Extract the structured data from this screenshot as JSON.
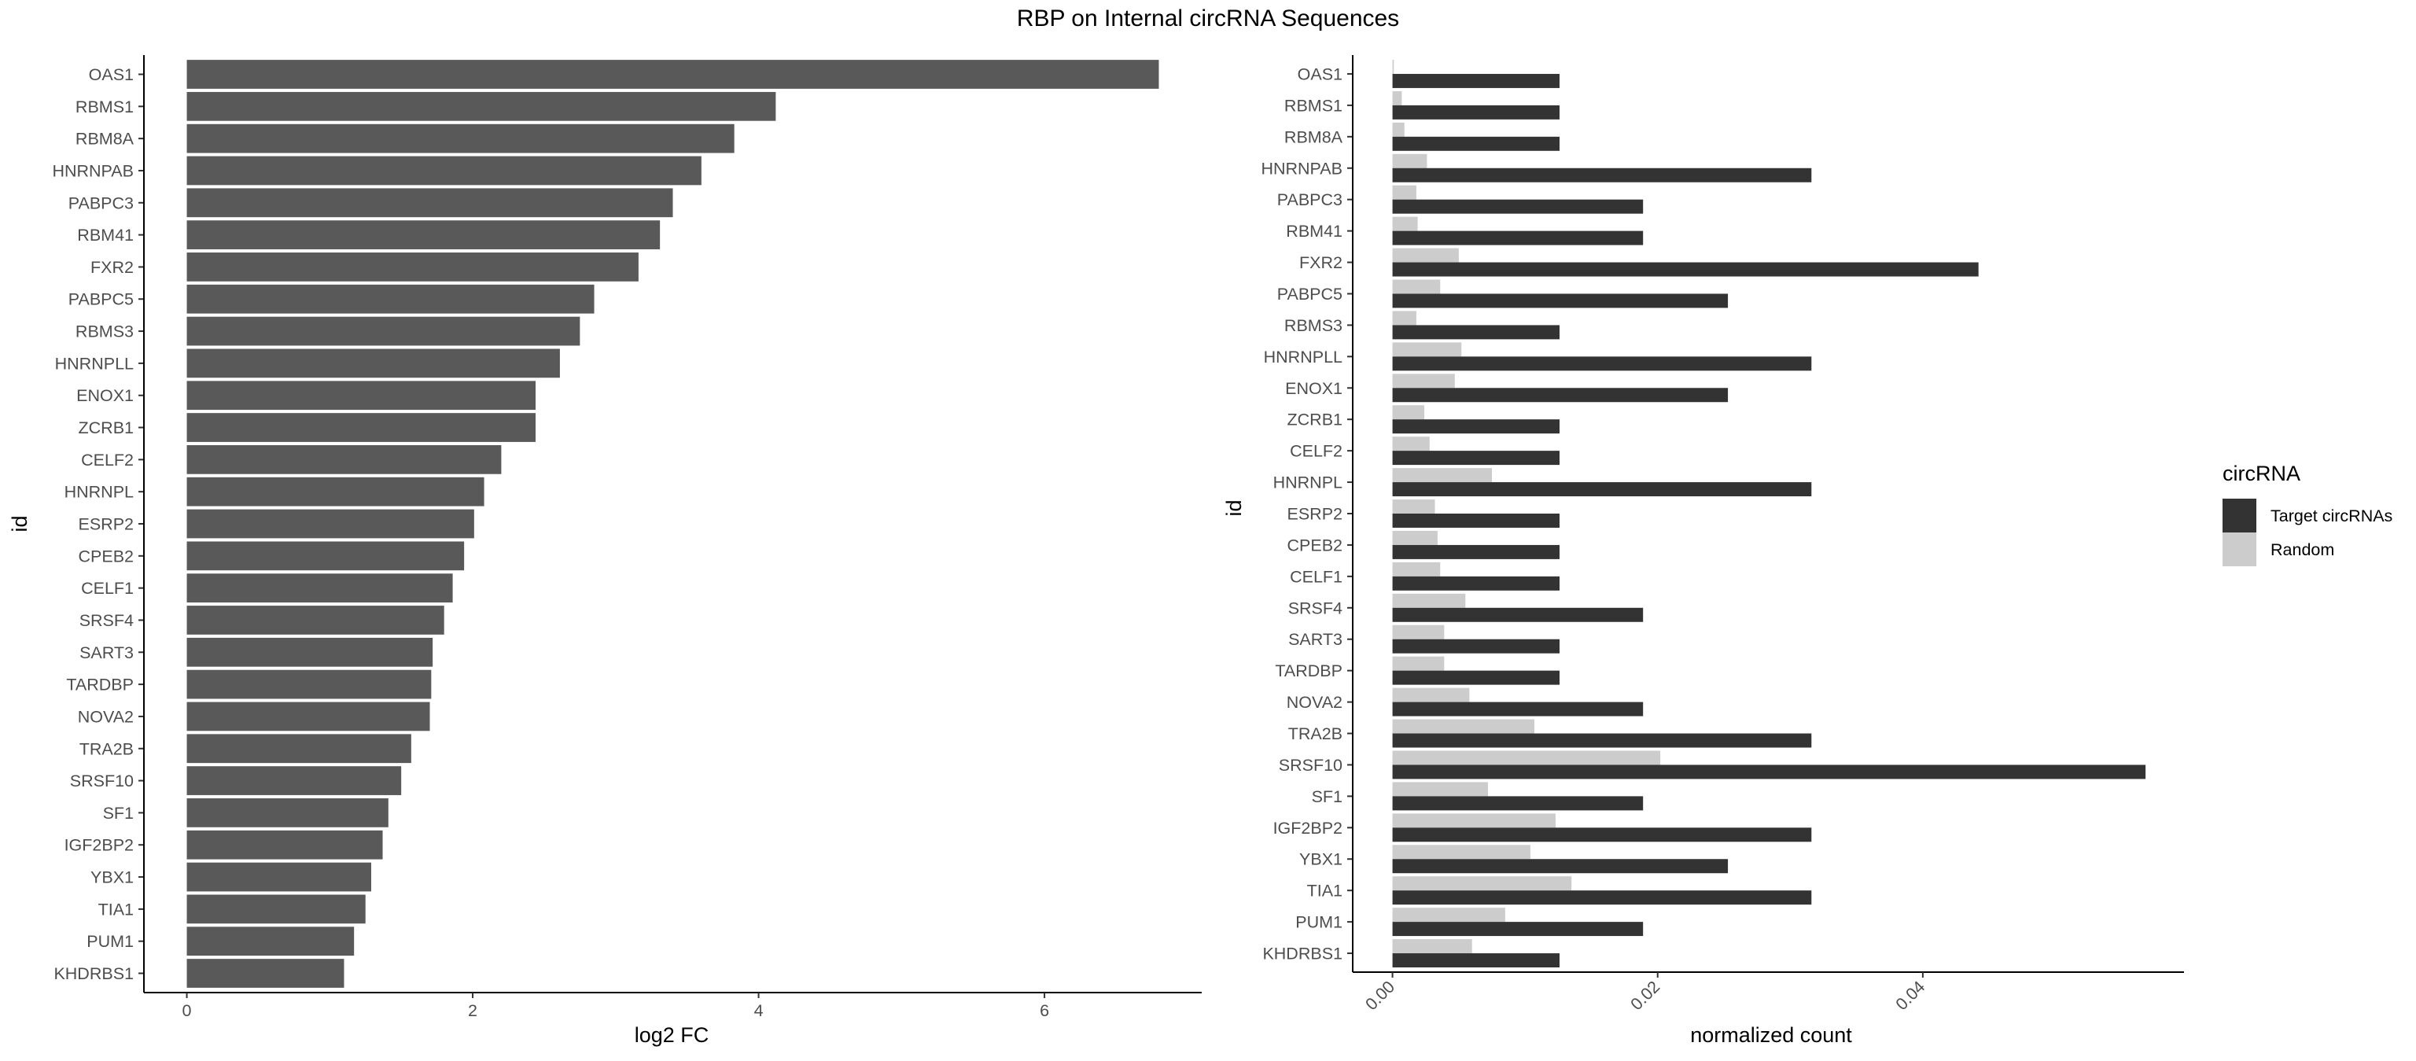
{
  "title": "RBP on Internal circRNA Sequences",
  "chart_data": [
    {
      "type": "bar",
      "orientation": "horizontal",
      "categories": [
        "OAS1",
        "RBMS1",
        "RBM8A",
        "HNRNPAB",
        "PABPC3",
        "RBM41",
        "FXR2",
        "PABPC5",
        "RBMS3",
        "HNRNPLL",
        "ENOX1",
        "ZCRB1",
        "CELF2",
        "HNRNPL",
        "ESRP2",
        "CPEB2",
        "CELF1",
        "SRSF4",
        "SART3",
        "TARDBP",
        "NOVA2",
        "TRA2B",
        "SRSF10",
        "SF1",
        "IGF2BP2",
        "YBX1",
        "TIA1",
        "PUM1",
        "KHDRBS1"
      ],
      "values": [
        6.8,
        4.12,
        3.83,
        3.6,
        3.4,
        3.31,
        3.16,
        2.85,
        2.75,
        2.61,
        2.44,
        2.44,
        2.2,
        2.08,
        2.01,
        1.94,
        1.86,
        1.8,
        1.72,
        1.71,
        1.7,
        1.57,
        1.5,
        1.41,
        1.37,
        1.29,
        1.25,
        1.17,
        1.1
      ],
      "xlabel": "log2 FC",
      "ylabel": "id",
      "xlim": [
        -0.3,
        7.1
      ],
      "xticks": [
        0,
        2,
        4,
        6
      ],
      "bar_color": "#595959",
      "grid": false
    },
    {
      "type": "bar",
      "orientation": "horizontal",
      "grouped": true,
      "categories": [
        "OAS1",
        "RBMS1",
        "RBM8A",
        "HNRNPAB",
        "PABPC3",
        "RBM41",
        "FXR2",
        "PABPC5",
        "RBMS3",
        "HNRNPLL",
        "ENOX1",
        "ZCRB1",
        "CELF2",
        "HNRNPL",
        "ESRP2",
        "CPEB2",
        "CELF1",
        "SRSF4",
        "SART3",
        "TARDBP",
        "NOVA2",
        "TRA2B",
        "SRSF10",
        "SF1",
        "IGF2BP2",
        "YBX1",
        "TIA1",
        "PUM1",
        "KHDRBS1"
      ],
      "series": [
        {
          "name": "Target circRNAs",
          "color": "#333333",
          "values": [
            0.0126,
            0.0126,
            0.0126,
            0.0316,
            0.0189,
            0.0189,
            0.0442,
            0.0253,
            0.0126,
            0.0316,
            0.0253,
            0.0126,
            0.0126,
            0.0316,
            0.0126,
            0.0126,
            0.0126,
            0.0189,
            0.0126,
            0.0126,
            0.0189,
            0.0316,
            0.0568,
            0.0189,
            0.0316,
            0.0253,
            0.0316,
            0.0189,
            0.0126
          ]
        },
        {
          "name": "Random",
          "color": "#cccccc",
          "values": [
            0.0001,
            0.0007,
            0.0009,
            0.0026,
            0.0018,
            0.0019,
            0.005,
            0.0036,
            0.0018,
            0.0052,
            0.0047,
            0.0024,
            0.0028,
            0.0075,
            0.0032,
            0.0034,
            0.0036,
            0.0055,
            0.0039,
            0.0039,
            0.0058,
            0.0107,
            0.0202,
            0.0072,
            0.0123,
            0.0104,
            0.0135,
            0.0085,
            0.006
          ]
        }
      ],
      "xlabel": "normalized count",
      "ylabel": "id",
      "xlim": [
        -0.003,
        0.0597
      ],
      "xticks": [
        0.0,
        0.02,
        0.04
      ],
      "xtick_labels": [
        "0.00",
        "0.02",
        "0.04"
      ],
      "legend": {
        "title": "circRNA",
        "position": "right"
      },
      "grid": false
    }
  ]
}
